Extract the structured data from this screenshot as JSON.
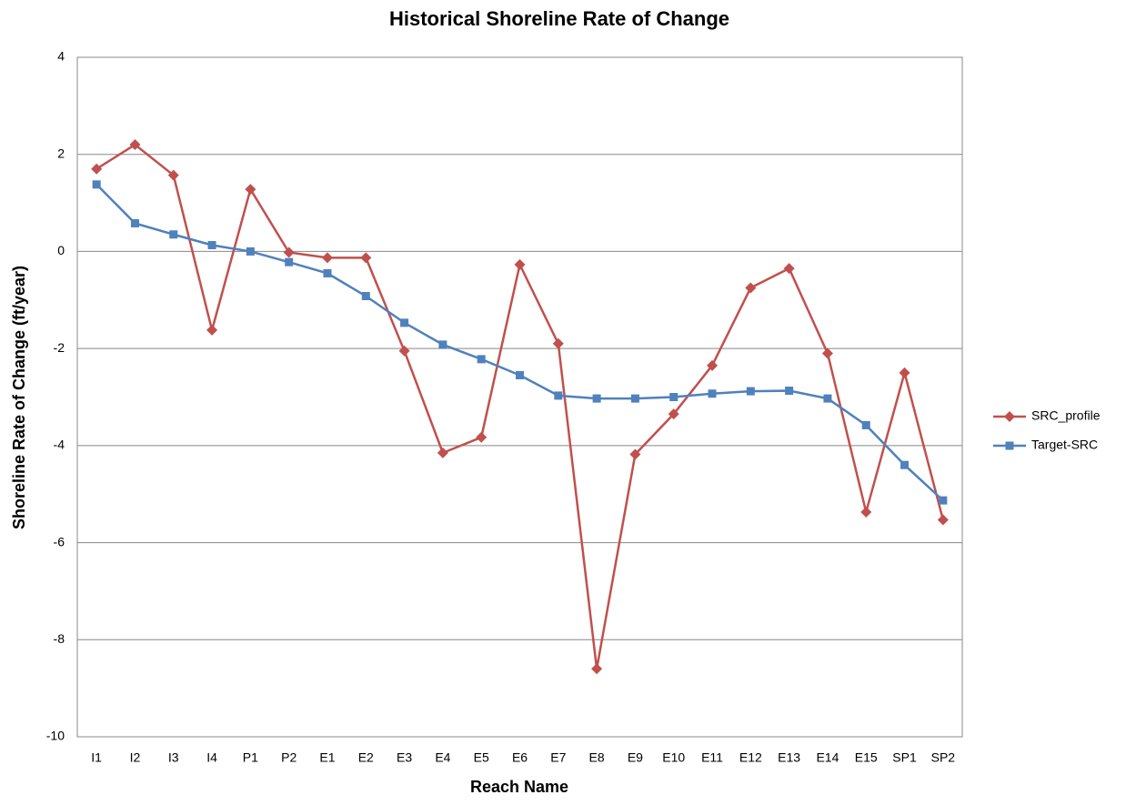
{
  "chart_data": {
    "type": "line",
    "title": "Historical Shoreline Rate of Change",
    "x_label": "Reach Name",
    "y_label": "Shoreline Rate of Change (ft/year)",
    "categories": [
      "I1",
      "I2",
      "I3",
      "I4",
      "P1",
      "P2",
      "E1",
      "E2",
      "E3",
      "E4",
      "E5",
      "E6",
      "E7",
      "E8",
      "E9",
      "E10",
      "E11",
      "E12",
      "E13",
      "E14",
      "E15",
      "SP1",
      "SP2"
    ],
    "series": [
      {
        "name": "SRC_profile",
        "color": "#c0504d",
        "marker": "diamond",
        "values": [
          1.7,
          2.2,
          1.57,
          -1.62,
          1.28,
          -0.02,
          -0.13,
          -0.13,
          -2.05,
          -4.15,
          -3.83,
          -0.27,
          -1.9,
          -8.6,
          -4.18,
          -3.35,
          -2.35,
          -0.75,
          -0.35,
          -2.1,
          -5.37,
          -2.5,
          -5.53
        ]
      },
      {
        "name": "Target-SRC",
        "color": "#4f81bd",
        "marker": "square",
        "values": [
          1.38,
          0.58,
          0.35,
          0.13,
          0.0,
          -0.22,
          -0.45,
          -0.92,
          -1.47,
          -1.92,
          -2.22,
          -2.55,
          -2.97,
          -3.03,
          -3.03,
          -3.0,
          -2.93,
          -2.88,
          -2.87,
          -3.03,
          -3.58,
          -4.4,
          -5.13
        ]
      }
    ],
    "ylim": [
      -10,
      4
    ],
    "yticks": [
      -10,
      -8,
      -6,
      -4,
      -2,
      0,
      2,
      4
    ],
    "grid": true,
    "legend": "right"
  }
}
